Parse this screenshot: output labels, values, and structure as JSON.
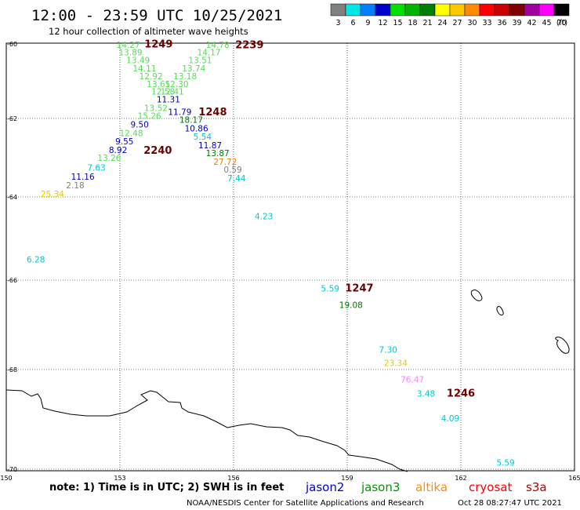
{
  "header": {
    "title": "12:00 - 23:59 UTC 10/25/2021",
    "subtitle": "12 hour collection of altimeter wave heights"
  },
  "legend": {
    "unit_label": "(ft)",
    "items": [
      {
        "label": "3",
        "color": "#808080"
      },
      {
        "label": "6",
        "color": "#00e6e6"
      },
      {
        "label": "9",
        "color": "#0080ff"
      },
      {
        "label": "12",
        "color": "#0000c8"
      },
      {
        "label": "15",
        "color": "#00e000"
      },
      {
        "label": "18",
        "color": "#00b400"
      },
      {
        "label": "21",
        "color": "#008000"
      },
      {
        "label": "24",
        "color": "#ffff00"
      },
      {
        "label": "27",
        "color": "#ffc800"
      },
      {
        "label": "30",
        "color": "#ff8c00"
      },
      {
        "label": "33",
        "color": "#ff0000"
      },
      {
        "label": "36",
        "color": "#c80000"
      },
      {
        "label": "39",
        "color": "#820000"
      },
      {
        "label": "42",
        "color": "#a000a0"
      },
      {
        "label": "45",
        "color": "#ff00ff"
      },
      {
        "label": "70",
        "color": "#000000"
      }
    ]
  },
  "axes": {
    "lat_ticks": [
      "-60",
      "-62",
      "-64",
      "-66",
      "-68",
      "-70"
    ],
    "lon_ticks": [
      "150",
      "153",
      "156",
      "159",
      "162",
      "165"
    ]
  },
  "colors": {
    "wave": "#909090",
    "time": "#6b0000",
    "gray": "#808080",
    "cyan": "#00c8d2",
    "blue": "#0000c0",
    "lgreen": "#55dd55",
    "dgreen": "#007800",
    "yellow": "#e6c800",
    "orange": "#e08000",
    "pink": "#ff80ff"
  },
  "observations": [
    {
      "text": "14.27",
      "c": "lgreen",
      "lon": 153.22,
      "lat": -60.02
    },
    {
      "text": "1249",
      "c": "time",
      "lon": 154.02,
      "lat": -60.01
    },
    {
      "text": "14.78",
      "c": "lgreen",
      "lon": 155.58,
      "lat": -60.02
    },
    {
      "text": "2239",
      "c": "time",
      "lon": 156.42,
      "lat": -60.03
    },
    {
      "text": "13.89",
      "c": "lgreen",
      "lon": 153.28,
      "lat": -60.22
    },
    {
      "text": "14.17",
      "c": "lgreen",
      "lon": 155.35,
      "lat": -60.22
    },
    {
      "text": "13.49",
      "c": "lgreen",
      "lon": 153.48,
      "lat": -60.43
    },
    {
      "text": "13.51",
      "c": "lgreen",
      "lon": 155.12,
      "lat": -60.43
    },
    {
      "text": "14.11",
      "c": "lgreen",
      "lon": 153.65,
      "lat": -60.65
    },
    {
      "text": "13.74",
      "c": "lgreen",
      "lon": 154.95,
      "lat": -60.65
    },
    {
      "text": "12.92",
      "c": "lgreen",
      "lon": 153.82,
      "lat": -60.86
    },
    {
      "text": "13.18",
      "c": "lgreen",
      "lon": 154.72,
      "lat": -60.86
    },
    {
      "text": "13.65",
      "c": "lgreen",
      "lon": 154.02,
      "lat": -61.07
    },
    {
      "text": "12.30",
      "c": "lgreen",
      "lon": 154.5,
      "lat": -61.07
    },
    {
      "text": "12.58",
      "c": "lgreen",
      "lon": 154.14,
      "lat": -61.27
    },
    {
      "text": "12.41",
      "c": "lgreen",
      "lon": 154.38,
      "lat": -61.27
    },
    {
      "text": "11.31",
      "c": "blue",
      "lon": 154.28,
      "lat": -61.48
    },
    {
      "text": "13.52",
      "c": "lgreen",
      "lon": 153.95,
      "lat": -61.72
    },
    {
      "text": "11.79",
      "c": "blue",
      "lon": 154.58,
      "lat": -61.82
    },
    {
      "text": "1248",
      "c": "time",
      "lon": 155.45,
      "lat": -61.83
    },
    {
      "text": "15.26",
      "c": "lgreen",
      "lon": 153.78,
      "lat": -61.93
    },
    {
      "text": "18.17",
      "c": "dgreen",
      "lon": 154.88,
      "lat": -62.03
    },
    {
      "text": "9.50",
      "c": "blue",
      "lon": 153.52,
      "lat": -62.15
    },
    {
      "text": "10.86",
      "c": "blue",
      "lon": 155.02,
      "lat": -62.25
    },
    {
      "text": "12.48",
      "c": "lgreen",
      "lon": 153.3,
      "lat": -62.37
    },
    {
      "text": "5.54",
      "c": "cyan",
      "lon": 155.18,
      "lat": -62.46
    },
    {
      "text": "9.55",
      "c": "blue",
      "lon": 153.12,
      "lat": -62.58
    },
    {
      "text": "11.87",
      "c": "blue",
      "lon": 155.38,
      "lat": -62.68
    },
    {
      "text": "8.92",
      "c": "blue",
      "lon": 152.95,
      "lat": -62.8
    },
    {
      "text": "2240",
      "c": "time",
      "lon": 154.0,
      "lat": -62.82
    },
    {
      "text": "13.87",
      "c": "dgreen",
      "lon": 155.58,
      "lat": -62.88
    },
    {
      "text": "13.26",
      "c": "lgreen",
      "lon": 152.72,
      "lat": -63.0
    },
    {
      "text": "27.72",
      "c": "orange",
      "lon": 155.78,
      "lat": -63.1
    },
    {
      "text": "7.63",
      "c": "cyan",
      "lon": 152.38,
      "lat": -63.25
    },
    {
      "text": "0.59",
      "c": "gray",
      "lon": 155.98,
      "lat": -63.3
    },
    {
      "text": "11.16",
      "c": "blue",
      "lon": 152.02,
      "lat": -63.48
    },
    {
      "text": "7.44",
      "c": "cyan",
      "lon": 156.08,
      "lat": -63.52
    },
    {
      "text": "2.18",
      "c": "gray",
      "lon": 151.82,
      "lat": -63.7
    },
    {
      "text": "25.34",
      "c": "yellow",
      "lon": 151.22,
      "lat": -63.92
    },
    {
      "text": "4.23",
      "c": "cyan",
      "lon": 156.8,
      "lat": -64.46
    },
    {
      "text": "6.28",
      "c": "cyan",
      "lon": 150.78,
      "lat": -65.5
    },
    {
      "text": "5.59",
      "c": "cyan",
      "lon": 158.55,
      "lat": -66.18
    },
    {
      "text": "1247",
      "c": "time",
      "lon": 159.32,
      "lat": -66.18
    },
    {
      "text": "19.08",
      "c": "dgreen",
      "lon": 159.1,
      "lat": -66.55
    },
    {
      "text": "7.30",
      "c": "cyan",
      "lon": 160.08,
      "lat": -67.55
    },
    {
      "text": "23.34",
      "c": "yellow",
      "lon": 160.28,
      "lat": -67.85
    },
    {
      "text": "76.47",
      "c": "pink",
      "lon": 160.72,
      "lat": -68.2
    },
    {
      "text": "3.48",
      "c": "cyan",
      "lon": 161.08,
      "lat": -68.48
    },
    {
      "text": "1246",
      "c": "time",
      "lon": 162.0,
      "lat": -68.48
    },
    {
      "text": "4.09",
      "c": "cyan",
      "lon": 161.72,
      "lat": -68.98
    },
    {
      "text": "5.59",
      "c": "cyan",
      "lon": 163.18,
      "lat": -69.87
    }
  ],
  "footer": {
    "note": "note: 1) Time is in UTC; 2) SWH is in feet",
    "satellites": [
      {
        "name": "jason2",
        "color": "#0000dc"
      },
      {
        "name": "jason3",
        "color": "#009600"
      },
      {
        "name": "altika",
        "color": "#ff8c00"
      },
      {
        "name": "cryosat",
        "color": "#ff0000"
      },
      {
        "name": "s3a",
        "color": "#b40000"
      }
    ],
    "credit": "NOAA/NESDIS Center for Satellite Applications and Research",
    "timestamp": "Oct 28 08:27:47 UTC 2021"
  }
}
